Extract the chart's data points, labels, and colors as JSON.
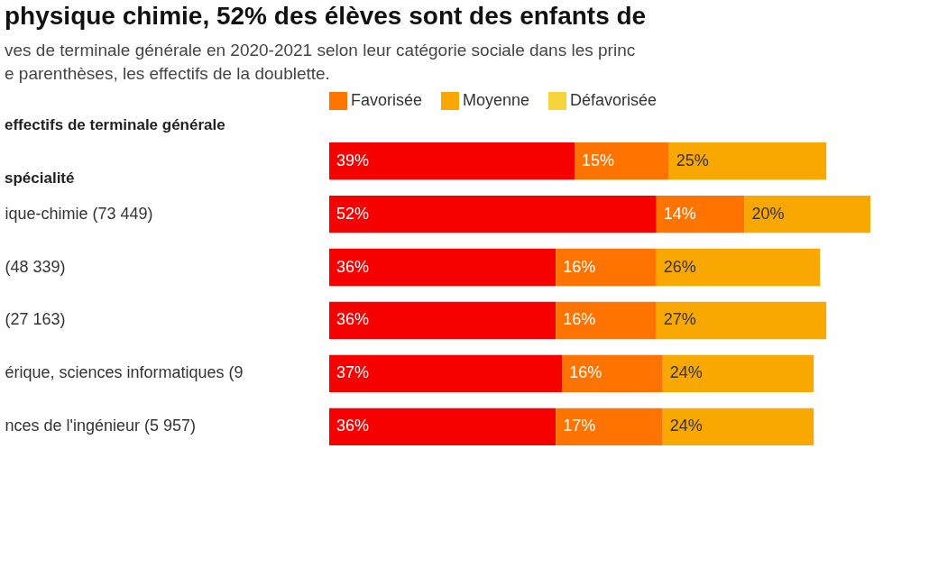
{
  "chart_data": {
    "type": "bar",
    "orientation": "horizontal",
    "stacked": true,
    "legend": "top left",
    "title": "physique chimie, 52% des élèves sont des enfants de",
    "subtitle": "ves de terminale générale en 2020-2021 selon leur catégorie sociale dans les princ\ne parenthèses, les effectifs de la doublette.",
    "annotations": [
      "effectifs de terminale générale",
      "spécialité"
    ],
    "categories": [
      null,
      "ique-chimie (73 449)",
      "(48 339)",
      "(27 163)",
      "érique, sciences informatiques (9",
      "nces de l'ingénieur (5 957)"
    ],
    "series": [
      {
        "color": "#f70000",
        "values": [
          39,
          52,
          36,
          36,
          37,
          36
        ],
        "value_labels": [
          "39%",
          "52%",
          "36%",
          "36%",
          "37%",
          "36%"
        ]
      },
      {
        "name": "Favorisée",
        "color": "#ff7300",
        "values": [
          15,
          14,
          16,
          16,
          16,
          17
        ],
        "value_labels": [
          "15%",
          "14%",
          "16%",
          "16%",
          "16%",
          "17%"
        ]
      },
      {
        "name": "Moyenne",
        "color": "#f8a800",
        "values": [
          25,
          20,
          26,
          27,
          24,
          24
        ],
        "value_labels": [
          "25%",
          "20%",
          "26%",
          "27%",
          "24%",
          "24%"
        ]
      },
      {
        "name": "Défavorisée",
        "color": "#f5d53a",
        "values": [
          null,
          null,
          null,
          null,
          null,
          null
        ]
      }
    ]
  }
}
